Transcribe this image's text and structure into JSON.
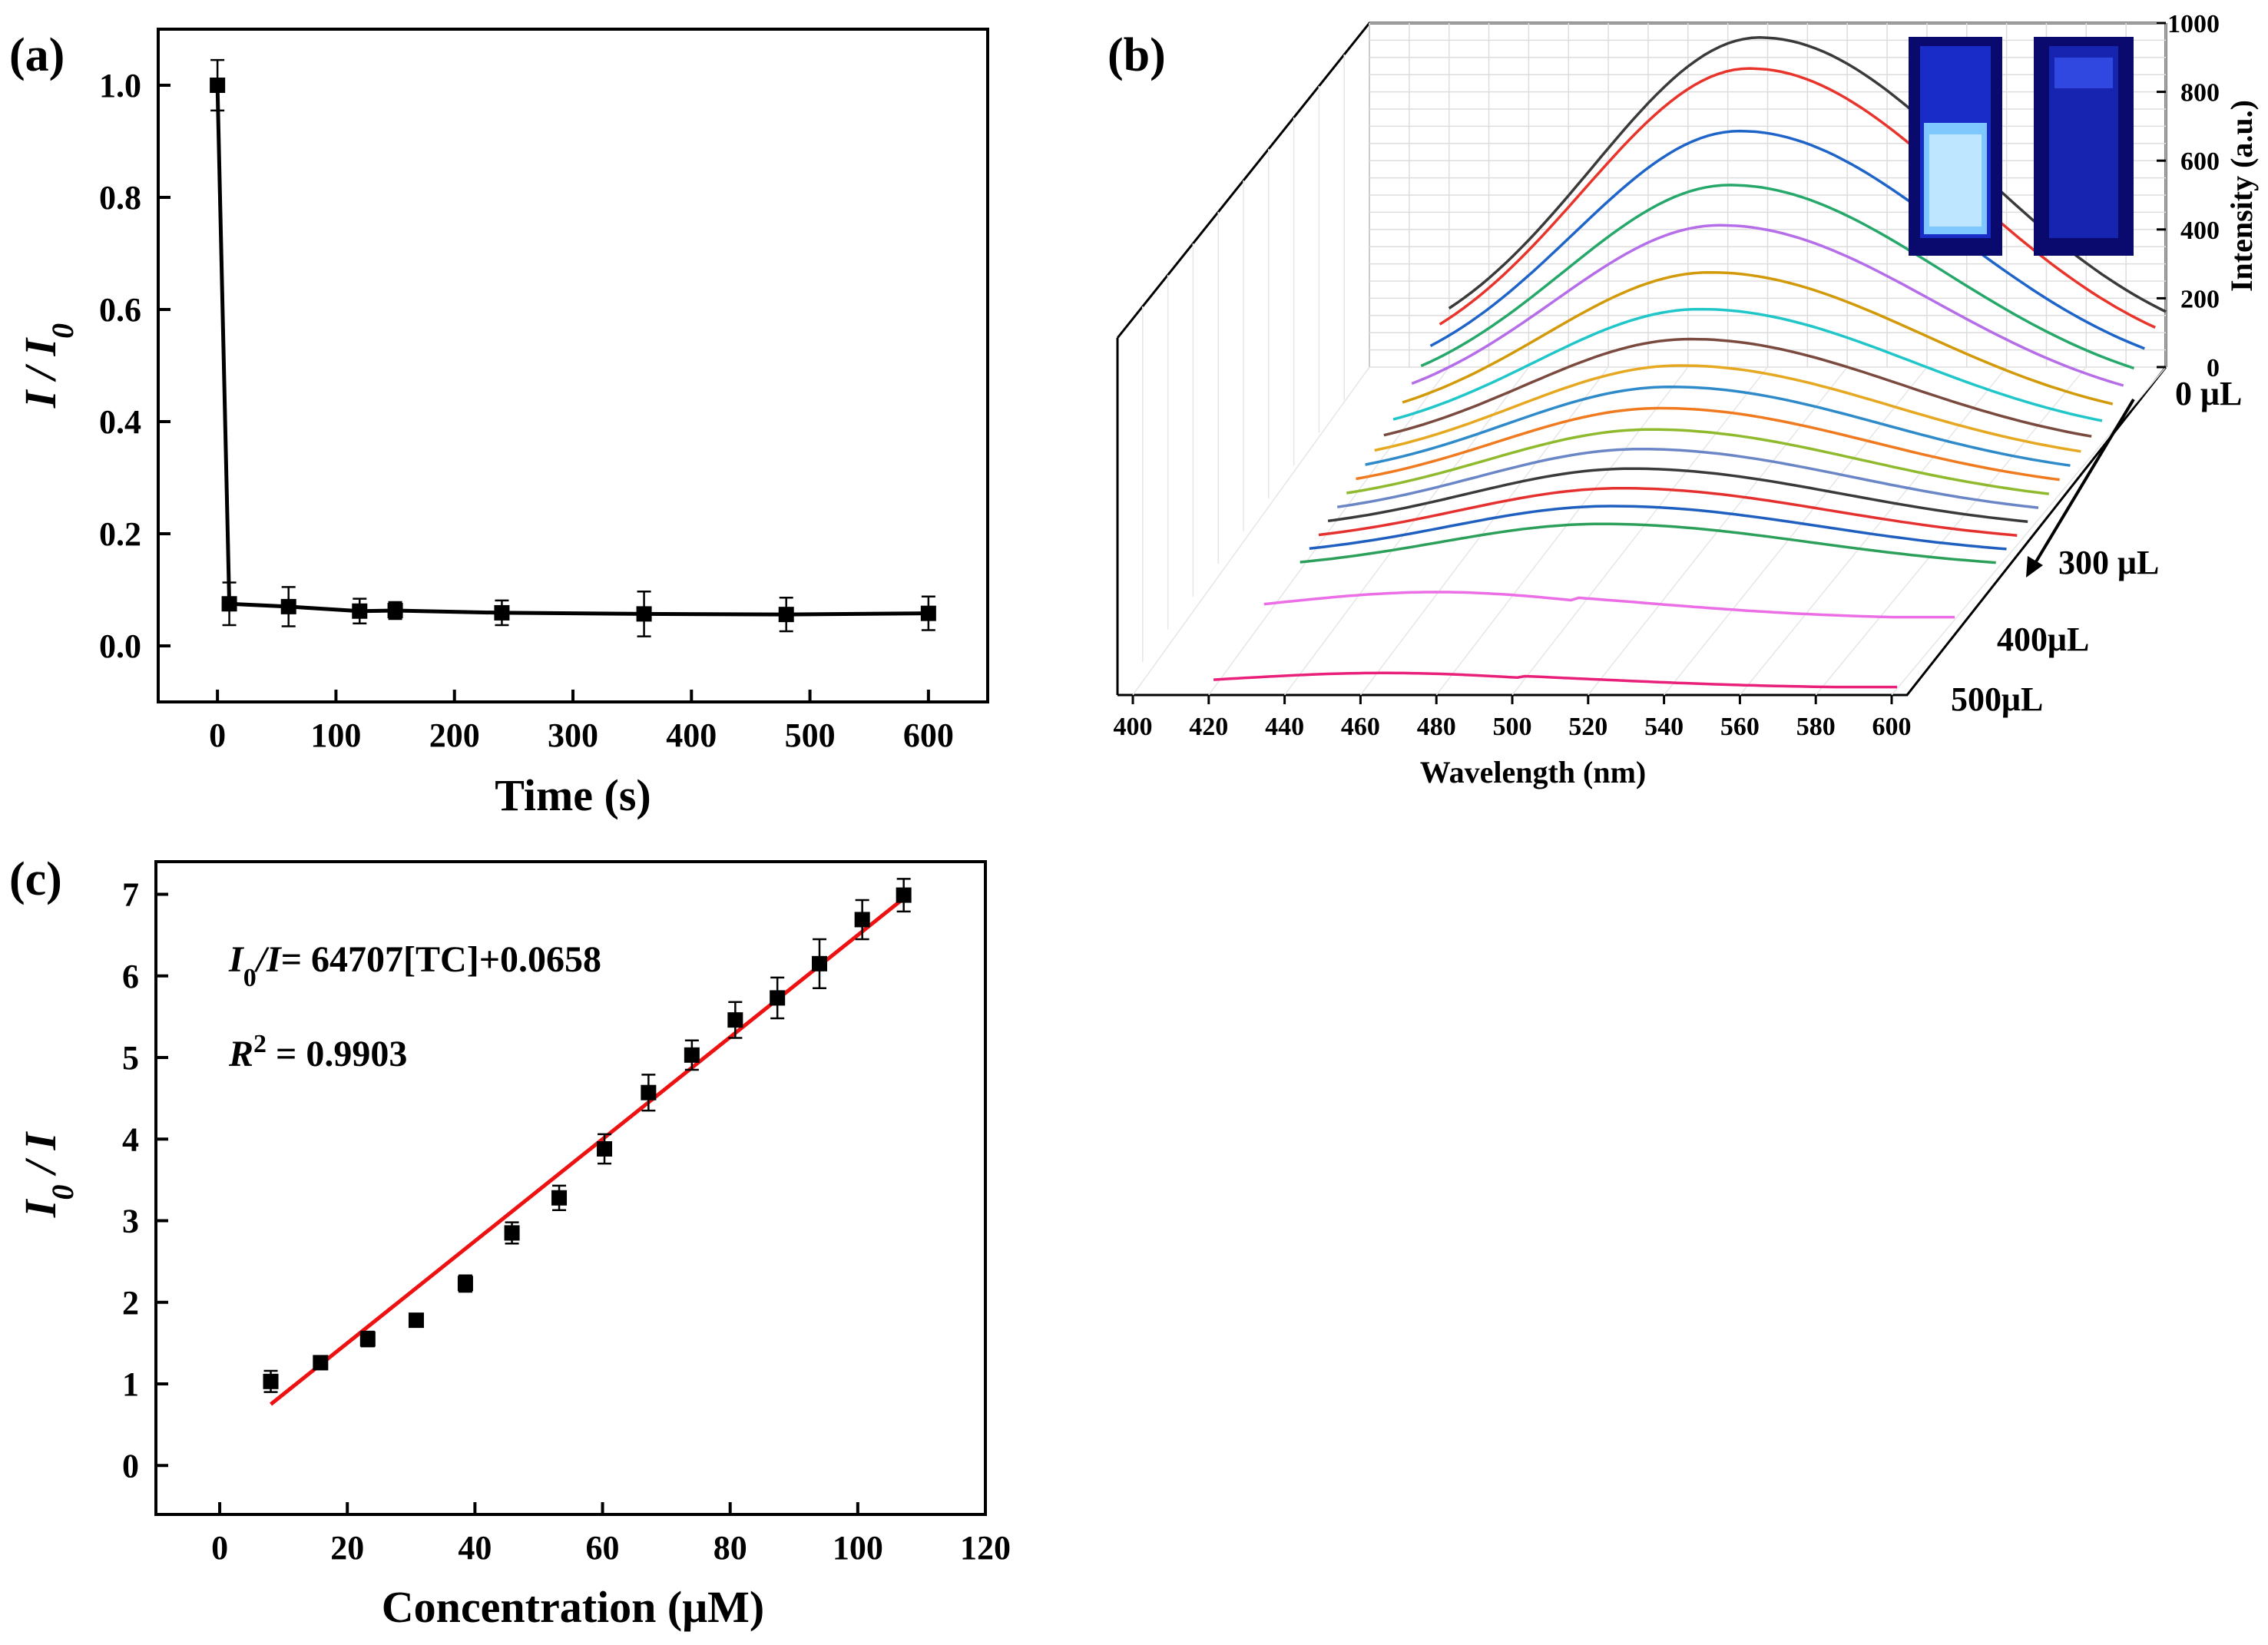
{
  "chart_data": [
    {
      "panel": "(a)",
      "type": "line",
      "xlabel": "Time (s)",
      "ylabel": "I / I0",
      "ylabel_main": "I / I",
      "ylabel_sub": "0",
      "xlim": [
        -50,
        650
      ],
      "ylim": [
        -0.1,
        1.1
      ],
      "xticks": [
        0,
        100,
        200,
        300,
        400,
        500,
        600
      ],
      "xtick_labels": [
        "0",
        "100",
        "200",
        "300",
        "400",
        "500",
        "600"
      ],
      "yticks": [
        0.0,
        0.2,
        0.4,
        0.6,
        0.8,
        1.0
      ],
      "ytick_labels": [
        "0.0",
        "0.2",
        "0.4",
        "0.6",
        "0.8",
        "1.0"
      ],
      "series": [
        {
          "name": "I/I0",
          "x": [
            0,
            10,
            60,
            120,
            150,
            240,
            360,
            480,
            600
          ],
          "y": [
            1.0,
            0.075,
            0.07,
            0.062,
            0.063,
            0.059,
            0.057,
            0.056,
            0.058
          ],
          "err": [
            0.045,
            0.038,
            0.035,
            0.022,
            0.015,
            0.022,
            0.04,
            0.03,
            0.03
          ]
        }
      ]
    },
    {
      "panel": "(b)",
      "type": "line",
      "xlabel": "Wavelength (nm)",
      "zlabel": "Intensity (a.u.)",
      "xlim": [
        400,
        600
      ],
      "zlim": [
        0,
        1000
      ],
      "xticks": [
        400,
        420,
        440,
        460,
        480,
        500,
        520,
        540,
        560,
        580,
        600
      ],
      "xtick_labels": [
        "400",
        "420",
        "440",
        "460",
        "480",
        "500",
        "520",
        "540",
        "560",
        "580",
        "600"
      ],
      "zticks": [
        0,
        200,
        400,
        600,
        800,
        1000
      ],
      "ztick_labels": [
        "0",
        "200",
        "400",
        "600",
        "800",
        "1000"
      ],
      "volume_labels": [
        "0 μL",
        "300 μL",
        "400μL",
        "500μL"
      ],
      "series_colors": [
        "#3a3a3a",
        "#e8342b",
        "#1f65c9",
        "#26a86a",
        "#b56ee8",
        "#d29a08",
        "#21c6c9",
        "#7a4a3f",
        "#e5a820",
        "#2f8ac9",
        "#f07a1f",
        "#8fba2e",
        "#6b86c6",
        "#3a3a3a",
        "#e53030",
        "#1f5fc0",
        "#2ca05a",
        "#ec6ee6",
        "#e8207a"
      ],
      "series_peaks": [
        958,
        905,
        760,
        640,
        560,
        460,
        390,
        340,
        300,
        275,
        250,
        225,
        205,
        185,
        165,
        150,
        135,
        80,
        45
      ]
    },
    {
      "panel": "(c)",
      "type": "scatter",
      "xlabel": "Concentration (μM)",
      "ylabel": "I0 / I",
      "ylabel_main": "I",
      "ylabel_sub": "0",
      "ylabel_tail": " / I",
      "xlim": [
        -10,
        120
      ],
      "ylim": [
        -0.6,
        7.4
      ],
      "xticks": [
        0,
        20,
        40,
        60,
        80,
        100,
        120
      ],
      "xtick_labels": [
        "0",
        "20",
        "40",
        "60",
        "80",
        "100",
        "120"
      ],
      "yticks": [
        0,
        1,
        2,
        3,
        4,
        5,
        6,
        7
      ],
      "ytick_labels": [
        "0",
        "1",
        "2",
        "3",
        "4",
        "5",
        "6",
        "7"
      ],
      "points": {
        "x": [
          8,
          15.8,
          23.2,
          30.8,
          38.5,
          45.8,
          53.2,
          60.3,
          67.2,
          74,
          80.8,
          87.4,
          94,
          100.7,
          107.2
        ],
        "y": [
          1.03,
          1.26,
          1.55,
          1.78,
          2.23,
          2.85,
          3.28,
          3.88,
          4.57,
          5.03,
          5.46,
          5.73,
          6.15,
          6.69,
          6.99
        ],
        "err": [
          0.13,
          0.08,
          0.09,
          0.05,
          0.1,
          0.13,
          0.15,
          0.18,
          0.22,
          0.18,
          0.22,
          0.25,
          0.3,
          0.24,
          0.2
        ]
      },
      "fit": {
        "x": [
          8,
          107.2
        ],
        "y": [
          0.75,
          6.95
        ]
      },
      "equation": {
        "lhs_main": "I",
        "lhs_sub": "0",
        "lhs_tail": "/I",
        "rhs": "= 64707[TC]+0.0658"
      },
      "r2": {
        "symbol": "R",
        "sup": "2",
        "value": " = 0.9903"
      }
    }
  ]
}
